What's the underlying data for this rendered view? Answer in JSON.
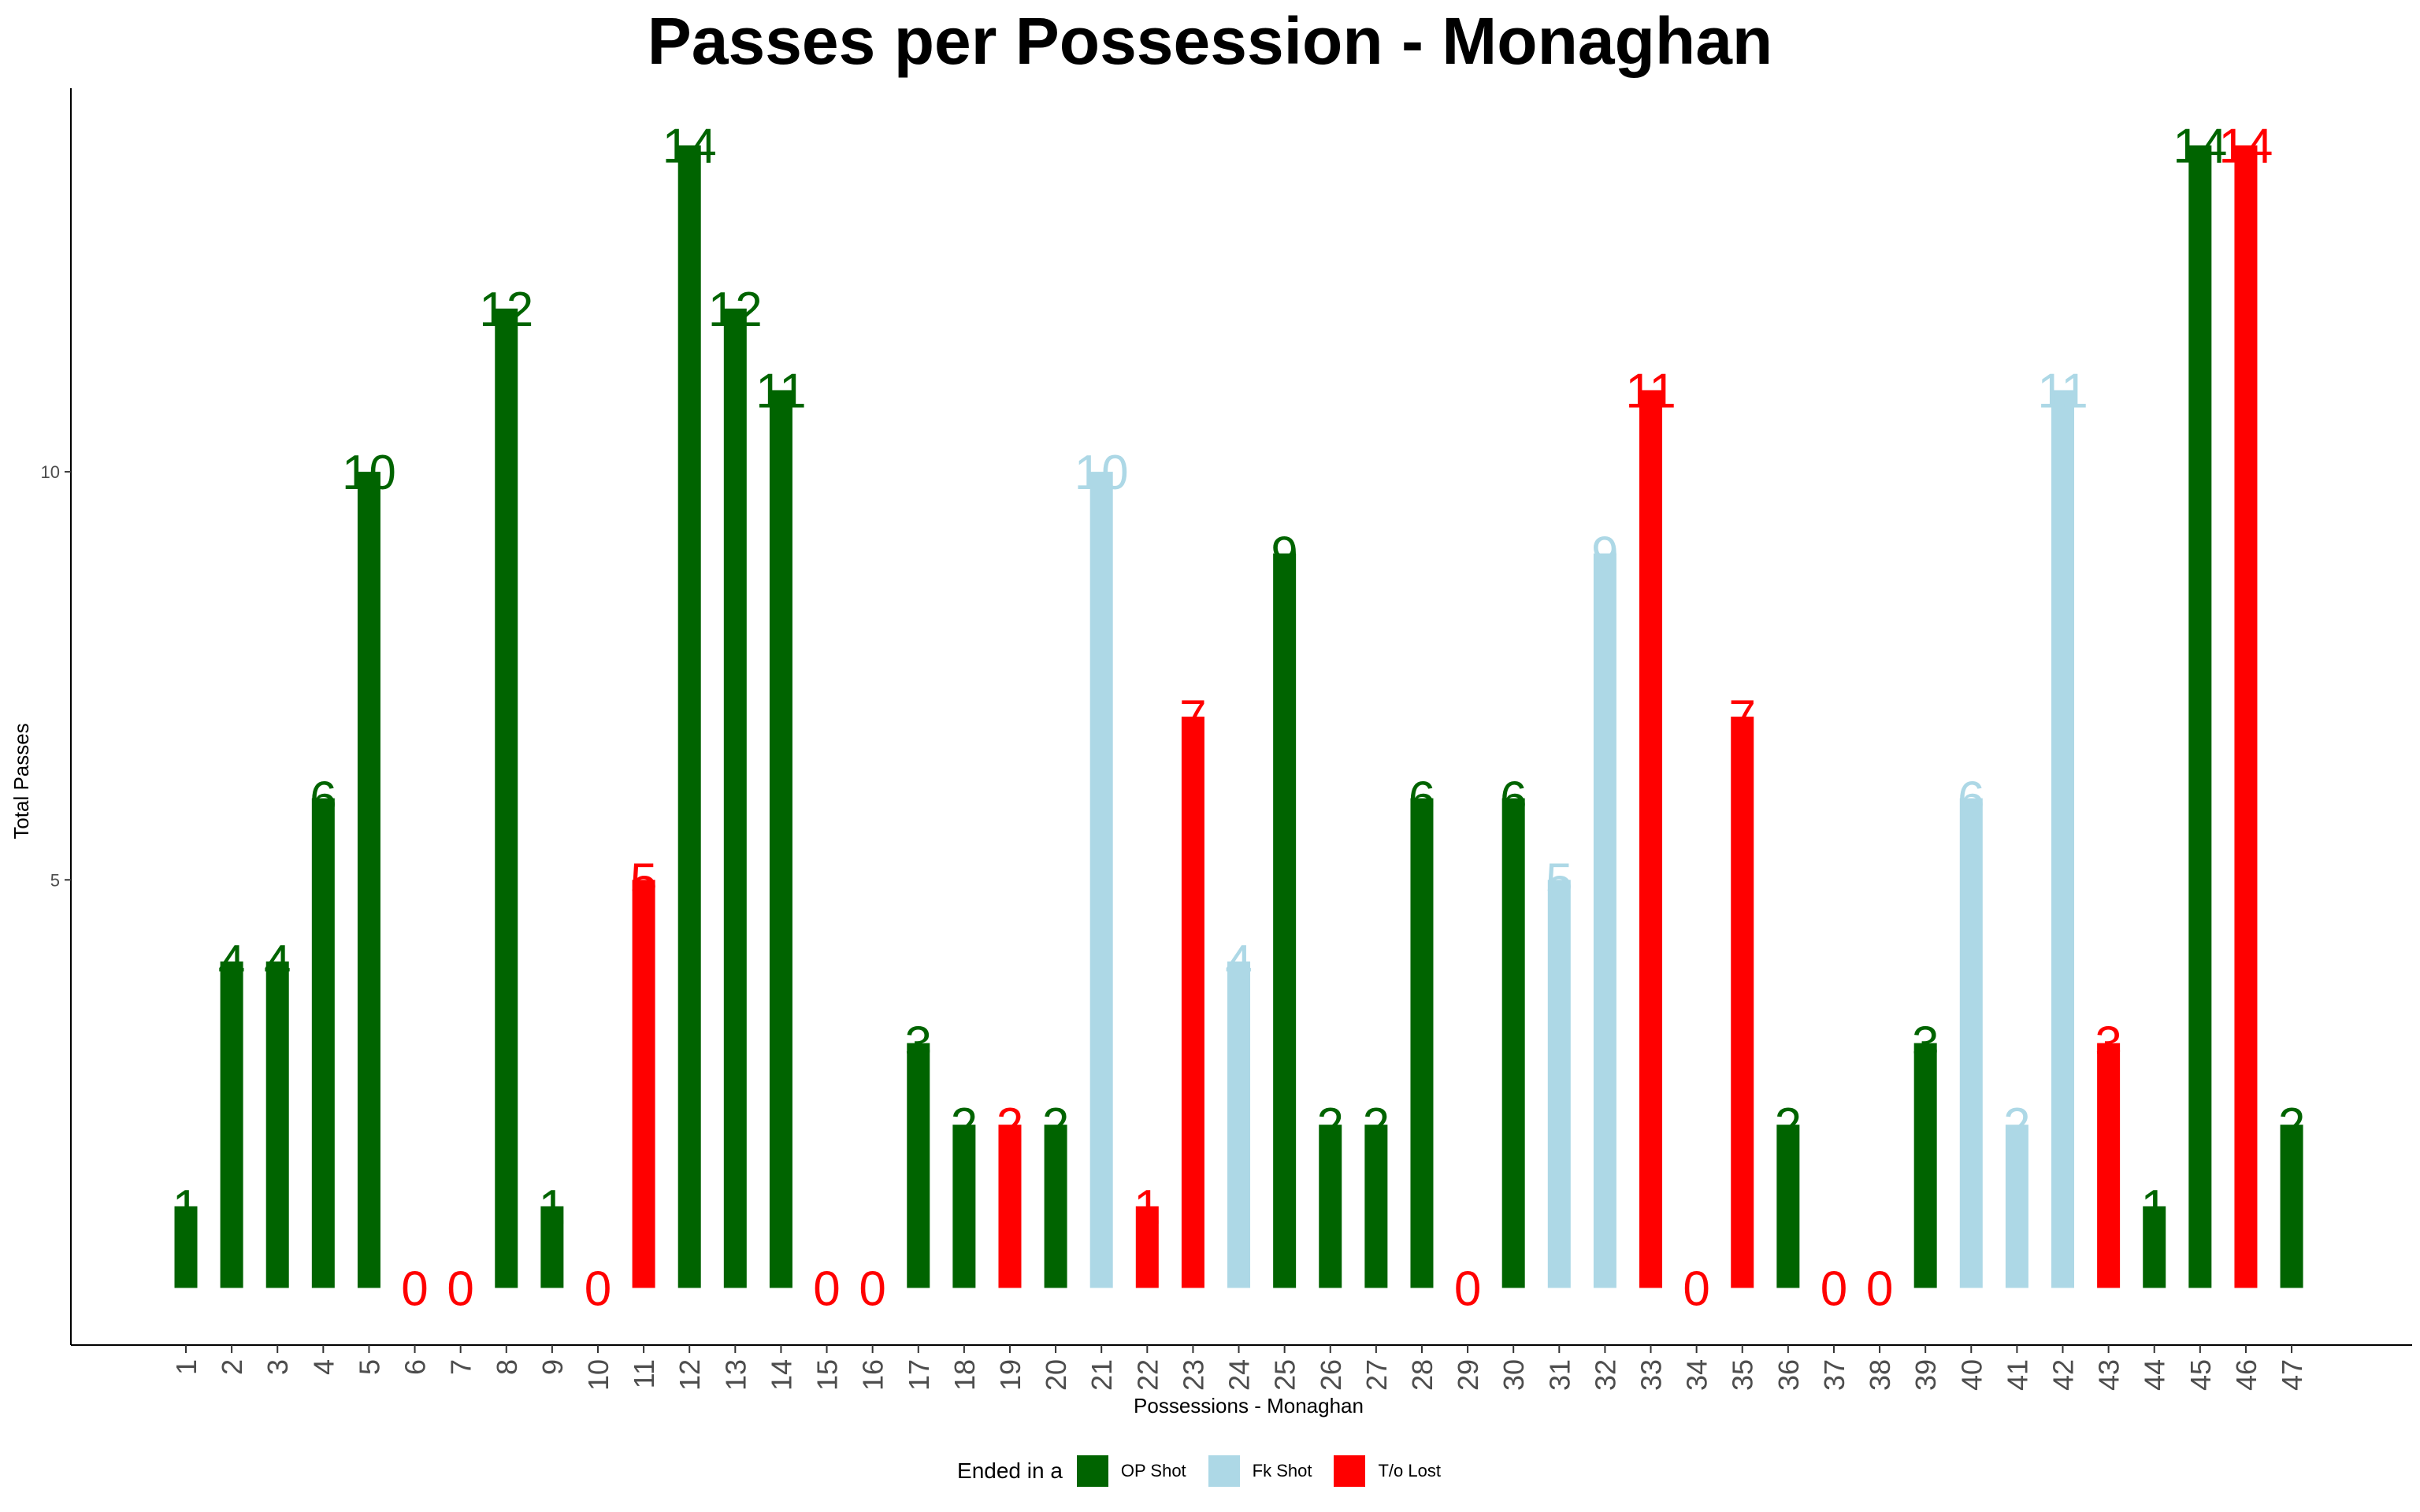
{
  "chart_data": {
    "type": "bar",
    "title": "Passes per Possession - Monaghan",
    "xlabel": "Possessions - Monaghan",
    "ylabel": "Total Passes",
    "ylim": [
      -0.7,
      14.7
    ],
    "y_ticks": [
      5,
      10
    ],
    "grid": false,
    "legend_placement": "bottom",
    "legend_title": "Ended in a",
    "legend": [
      {
        "key": "op",
        "label": "OP Shot",
        "color": "#006400"
      },
      {
        "key": "fk",
        "label": "Fk Shot",
        "color": "#ADD8E6"
      },
      {
        "key": "to",
        "label": "T/o Lost",
        "color": "#FF0000"
      }
    ],
    "categories": [
      "1",
      "2",
      "3",
      "4",
      "5",
      "6",
      "7",
      "8",
      "9",
      "10",
      "11",
      "12",
      "13",
      "14",
      "15",
      "16",
      "17",
      "18",
      "19",
      "20",
      "21",
      "22",
      "23",
      "24",
      "25",
      "26",
      "27",
      "28",
      "29",
      "30",
      "31",
      "32",
      "33",
      "34",
      "35",
      "36",
      "37",
      "38",
      "39",
      "40",
      "41",
      "42",
      "43",
      "44",
      "45",
      "46",
      "47"
    ],
    "values": [
      1,
      4,
      4,
      6,
      10,
      0,
      0,
      12,
      1,
      0,
      5,
      14,
      12,
      11,
      0,
      0,
      3,
      2,
      2,
      2,
      10,
      1,
      7,
      4,
      9,
      2,
      2,
      6,
      0,
      6,
      5,
      9,
      11,
      0,
      7,
      2,
      0,
      0,
      3,
      6,
      2,
      11,
      3,
      1,
      14,
      14,
      2
    ],
    "groups": [
      "op",
      "op",
      "op",
      "op",
      "op",
      "to",
      "to",
      "op",
      "op",
      "to",
      "to",
      "op",
      "op",
      "op",
      "to",
      "to",
      "op",
      "op",
      "to",
      "op",
      "fk",
      "to",
      "to",
      "fk",
      "op",
      "op",
      "op",
      "op",
      "to",
      "op",
      "fk",
      "fk",
      "to",
      "to",
      "to",
      "op",
      "to",
      "to",
      "op",
      "fk",
      "fk",
      "fk",
      "to",
      "op",
      "op",
      "to",
      "op"
    ]
  }
}
